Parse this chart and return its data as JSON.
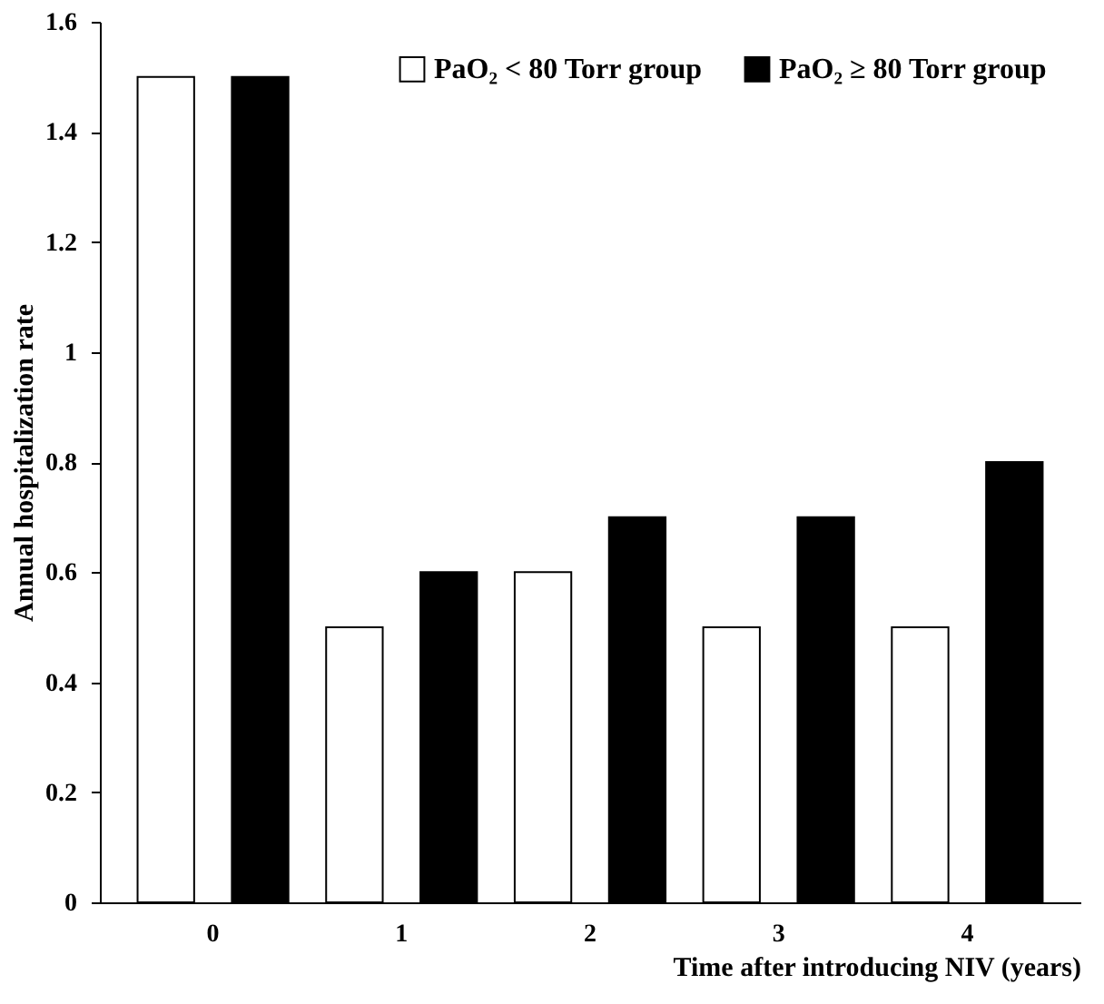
{
  "chart_data": {
    "type": "bar",
    "xlabel": "Time after introducing NIV (years)",
    "ylabel": "Annual hospitalization rate",
    "categories": [
      "0",
      "1",
      "2",
      "3",
      "4"
    ],
    "series": [
      {
        "name": "PaO₂ < 80 Torr group",
        "color": "#ffffff",
        "values": [
          1.5,
          0.5,
          0.6,
          0.5,
          0.5
        ]
      },
      {
        "name": "PaO₂ ≥ 80 Torr group",
        "color": "#000000",
        "values": [
          1.5,
          0.6,
          0.7,
          0.7,
          0.8
        ]
      }
    ],
    "ylim": [
      0,
      1.6
    ],
    "yticks": [
      0,
      0.2,
      0.4,
      0.6,
      0.8,
      1,
      1.2,
      1.4,
      1.6
    ],
    "grid": false,
    "legend": "top right"
  }
}
